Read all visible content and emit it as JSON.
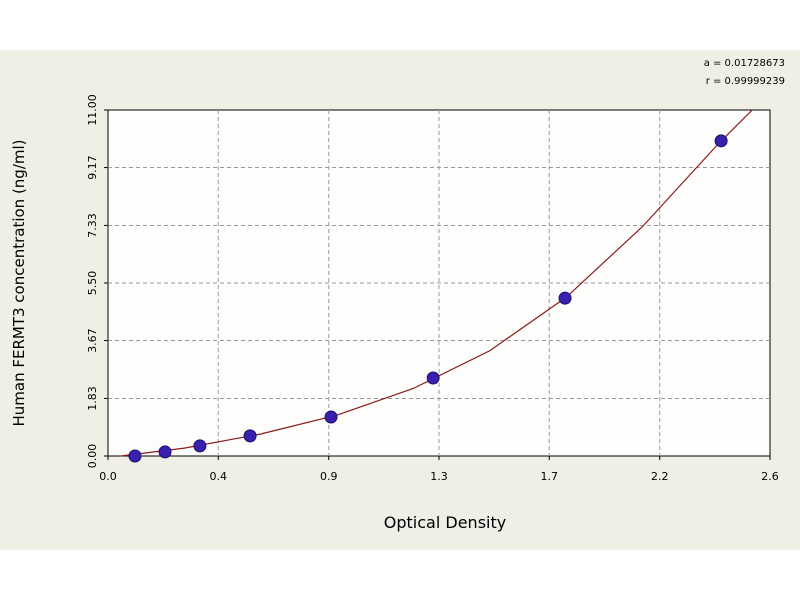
{
  "chart_data": {
    "type": "scatter",
    "x_label": "Optical Density",
    "y_label": "Human FERMT3 concentration (ng/ml)",
    "annotations": [
      "a = 0.01728673",
      "r = 0.99999239"
    ],
    "xlim": [
      0,
      2.6
    ],
    "ylim": [
      0,
      11
    ],
    "xticks": [
      {
        "value": 0,
        "label": "0.0"
      },
      {
        "value": 0.433,
        "label": "0.4"
      },
      {
        "value": 0.867,
        "label": "0.9"
      },
      1.3,
      {
        "value": 1.733,
        "label": "1.7"
      },
      {
        "value": 2.167,
        "label": "2.2"
      },
      2.6
    ],
    "yticks": [
      {
        "value": 0,
        "label": "0.00"
      },
      1.83,
      3.67,
      {
        "value": 5.5,
        "label": "5.50"
      },
      7.33,
      9.17,
      {
        "value": 11,
        "label": "11.00"
      }
    ],
    "grid": true,
    "series": [
      {
        "color": "#3a1fae",
        "x": [
          0.106,
          0.224,
          0.361,
          0.558,
          0.876,
          1.277,
          1.795,
          2.408
        ],
        "values": [
          0,
          0.13,
          0.32,
          0.64,
          1.24,
          2.48,
          5.02,
          10.02
        ]
      }
    ],
    "fit_line": {
      "color": "#8b1a1a",
      "x": [
        0.05,
        0.3,
        0.6,
        0.9,
        1.2,
        1.5,
        1.8,
        2.1,
        2.4,
        2.53
      ],
      "values": [
        0,
        0.25,
        0.7,
        1.3,
        2.15,
        3.35,
        5.05,
        7.3,
        9.95,
        11
      ]
    }
  }
}
